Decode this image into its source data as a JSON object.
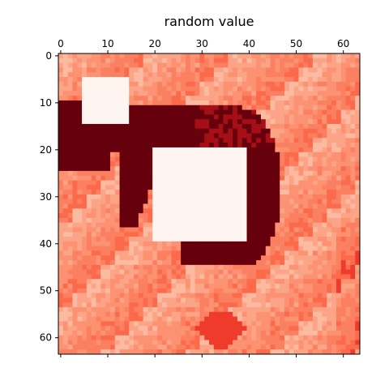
{
  "chart_data": {
    "type": "heatmap",
    "title": "random value",
    "xlabel": "",
    "ylabel": "",
    "grid_size": [
      64,
      64
    ],
    "xlim": [
      -0.5,
      63.5
    ],
    "ylim": [
      63.5,
      -0.5
    ],
    "x_ticks": [
      0,
      10,
      20,
      30,
      40,
      50,
      60
    ],
    "y_ticks": [
      0,
      10,
      20,
      30,
      40,
      50,
      60
    ],
    "x_tick_position": "top",
    "colormap": "Reds",
    "grid": false,
    "colors": {
      "background_low": "#fc9272",
      "background_mid": "#fb6a4a",
      "high_region": "#67000d",
      "masked": "#fff5f0"
    },
    "masked_rectangles": [
      {
        "x": [
          5,
          14
        ],
        "y": [
          5,
          14
        ]
      },
      {
        "x": [
          20,
          39
        ],
        "y": [
          20,
          39
        ]
      }
    ]
  }
}
